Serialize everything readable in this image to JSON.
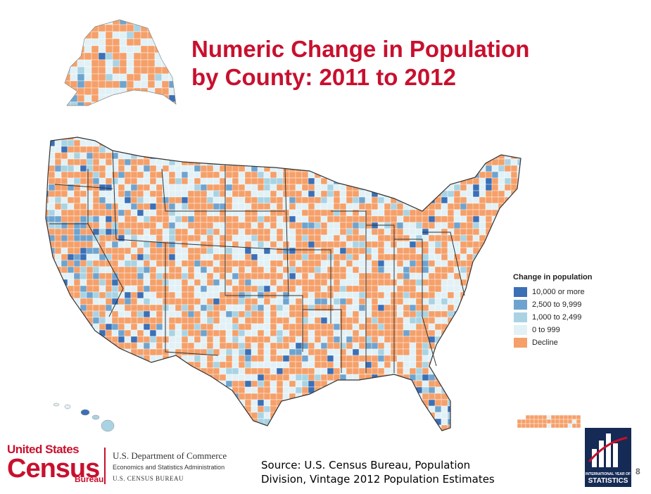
{
  "title": {
    "line1": "Numeric Change in Population",
    "line2": "by County: 2011 to 2012"
  },
  "legend": {
    "title": "Change in population",
    "items": [
      {
        "label": "10,000 or more",
        "color": "#3b6fb6"
      },
      {
        "label": "2,500 to 9,999",
        "color": "#6fa3cf"
      },
      {
        "label": "1,000 to 2,499",
        "color": "#a9d3e3"
      },
      {
        "label": "0 to 999",
        "color": "#e2f1f6"
      },
      {
        "label": "Decline",
        "color": "#f5a06a"
      }
    ]
  },
  "footer": {
    "census_logo_top": "United States",
    "census_logo_main": "Census",
    "census_logo_bureau": "Bureau",
    "dept_line1": "U.S. Department of Commerce",
    "dept_line2": "Economics and Statistics Administration",
    "dept_line3": "U.S. CENSUS BUREAU",
    "source_line1": "Source: U.S. Census Bureau, Population",
    "source_line2": "Division, Vintage 2012 Population Estimates",
    "iys_line1": "INTERNATIONAL YEAR OF",
    "iys_line2": "STATISTICS",
    "page_number": "8"
  },
  "colors": {
    "title": "#c8102e",
    "decline": "#f5a06a",
    "small": "#e2f1f6",
    "medium": "#a9d3e3",
    "large": "#6fa3cf",
    "xlarge": "#3b6fb6"
  }
}
